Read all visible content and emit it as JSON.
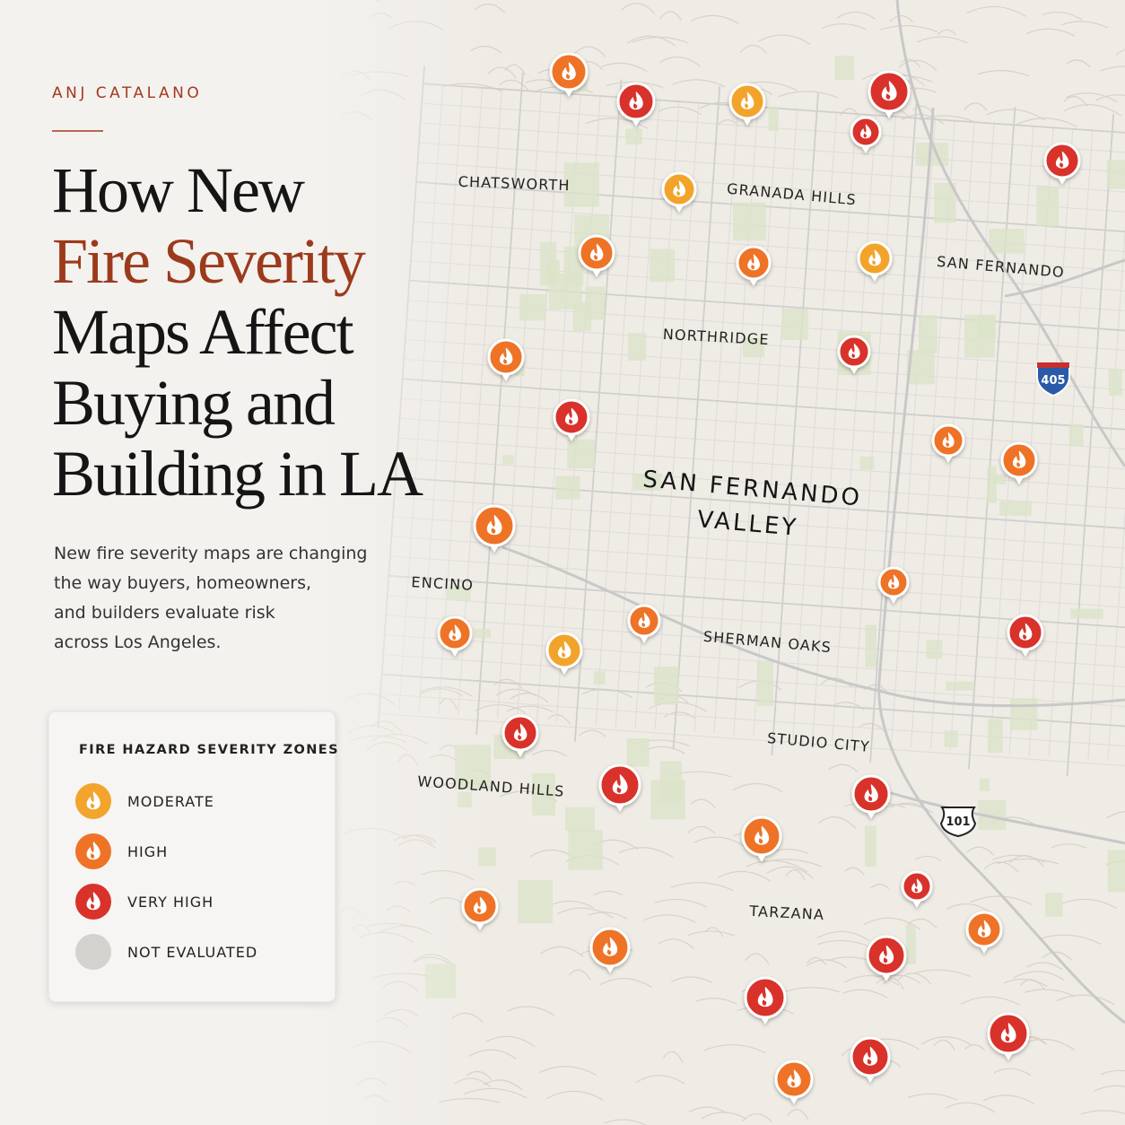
{
  "brand": "ANJ CATALANO",
  "title": {
    "lines": [
      "How New",
      "Fire Severity",
      "Maps Affect",
      "Buying and",
      "Building in LA"
    ],
    "accent_color": "#9c3a1c"
  },
  "description": {
    "lines": [
      "New fire severity maps are changing",
      "the way buyers, homeowners,",
      "and builders evaluate risk",
      "across Los Angeles."
    ]
  },
  "legend": {
    "title": "FIRE HAZARD SEVERITY ZONES",
    "items": [
      {
        "label": "MODERATE",
        "color": "#f2a42c"
      },
      {
        "label": "HIGH",
        "color": "#ee7326"
      },
      {
        "label": "VERY HIGH",
        "color": "#d8322a"
      },
      {
        "label": "NOT EVALUATED",
        "color": "#d4d2cf"
      }
    ]
  },
  "map": {
    "labels": [
      "CHATSWORTH",
      "GRANADA HILLS",
      "SAN FERNANDO",
      "NORTHRIDGE",
      "ENCINO",
      "SHERMAN OAKS",
      "STUDIO CITY",
      "WOODLAND HILLS",
      "TARZANA"
    ],
    "region_label": [
      "SAN FERNANDO",
      "VALLEY"
    ],
    "shields": [
      "405",
      "101"
    ]
  }
}
